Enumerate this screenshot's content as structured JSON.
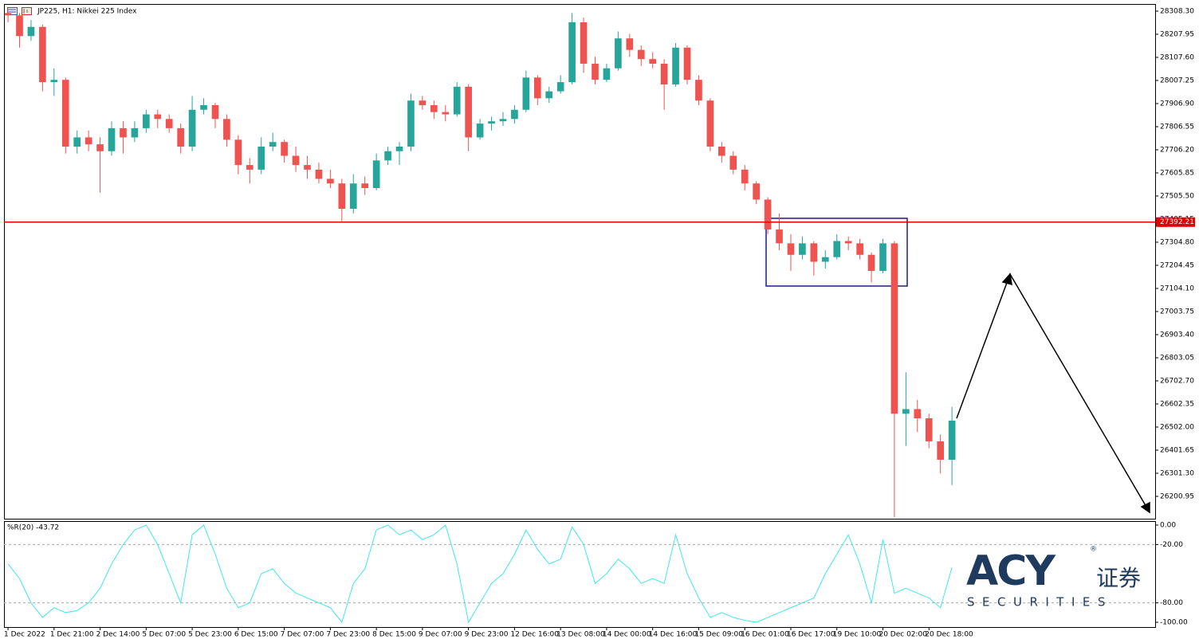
{
  "chart_data": [
    {
      "type": "candlestick",
      "title": "JP225, H1:  Nikkei 225 Index",
      "xlim": [
        -0.35,
        99.65
      ],
      "xticks": [
        {
          "value": 0,
          "label": "1 Dec 2022"
        },
        {
          "value": 4,
          "label": "1 Dec 21:00"
        },
        {
          "value": 8,
          "label": "2 Dec 14:00"
        },
        {
          "value": 12,
          "label": "5 Dec 07:00"
        },
        {
          "value": 16,
          "label": "5 Dec 23:00"
        },
        {
          "value": 20,
          "label": "6 Dec 15:00"
        },
        {
          "value": 24,
          "label": "7 Dec 07:00"
        },
        {
          "value": 28,
          "label": "7 Dec 23:00"
        },
        {
          "value": 32,
          "label": "8 Dec 15:00"
        },
        {
          "value": 36,
          "label": "9 Dec 07:00"
        },
        {
          "value": 40,
          "label": "9 Dec 23:00"
        },
        {
          "value": 44,
          "label": "12 Dec 16:00"
        },
        {
          "value": 48,
          "label": "13 Dec 08:00"
        },
        {
          "value": 52,
          "label": "14 Dec 00:00"
        },
        {
          "value": 56,
          "label": "14 Dec 16:00"
        },
        {
          "value": 60,
          "label": "15 Dec 09:00"
        },
        {
          "value": 64,
          "label": "16 Dec 01:00"
        },
        {
          "value": 68,
          "label": "16 Dec 17:00"
        },
        {
          "value": 72,
          "label": "19 Dec 10:00"
        },
        {
          "value": 76,
          "label": "20 Dec 02:00"
        },
        {
          "value": 80,
          "label": "20 Dec 18:00"
        }
      ],
      "ylim": [
        26104,
        28339.4
      ],
      "yticks": [
        {
          "value": 28308.3,
          "label": "28308.30"
        },
        {
          "value": 28207.95,
          "label": "28207.95"
        },
        {
          "value": 28107.6,
          "label": "28107.60"
        },
        {
          "value": 28007.25,
          "label": "28007.25"
        },
        {
          "value": 27906.9,
          "label": "27906.90"
        },
        {
          "value": 27806.55,
          "label": "27806.55"
        },
        {
          "value": 27706.2,
          "label": "27706.20"
        },
        {
          "value": 27605.85,
          "label": "27605.85"
        },
        {
          "value": 27505.5,
          "label": "27505.50"
        },
        {
          "value": 27405.15,
          "label": "27405.15"
        },
        {
          "value": 27304.8,
          "label": "27304.80"
        },
        {
          "value": 27204.45,
          "label": "27204.45"
        },
        {
          "value": 27104.1,
          "label": "27104.10"
        },
        {
          "value": 27003.75,
          "label": "27003.75"
        },
        {
          "value": 26903.4,
          "label": "26903.40"
        },
        {
          "value": 26803.05,
          "label": "26803.05"
        },
        {
          "value": 26702.7,
          "label": "26702.70"
        },
        {
          "value": 26602.35,
          "label": "26602.35"
        },
        {
          "value": 26502,
          "label": "26502.00"
        },
        {
          "value": 26401.65,
          "label": "26401.65"
        },
        {
          "value": 26301.3,
          "label": "26301.30"
        },
        {
          "value": 26200.95,
          "label": "26200.95"
        }
      ],
      "up_color": "#26a69a",
      "down_color": "#ef5350",
      "open": [
        28300,
        28290,
        28200,
        28240,
        28000,
        28010,
        27720,
        27760,
        27730,
        27700,
        27800,
        27760,
        27800,
        27860,
        27840,
        27800,
        27720,
        27880,
        27900,
        27840,
        27750,
        27640,
        27620,
        27720,
        27740,
        27680,
        27640,
        27620,
        27580,
        27560,
        27450,
        27560,
        27540,
        27660,
        27700,
        27720,
        27920,
        27900,
        27870,
        27860,
        27980,
        27760,
        27820,
        27830,
        27840,
        27880,
        28020,
        27930,
        27960,
        28000,
        28260,
        28080,
        28010,
        28060,
        28190,
        28140,
        28100,
        28080,
        27990,
        28150,
        28010,
        27920,
        27720,
        27680,
        27620,
        27560,
        27490,
        27360,
        27300,
        27250,
        27300,
        27220,
        27240,
        27310,
        27300,
        27250,
        27180,
        27300,
        26560,
        26580,
        26540,
        26440,
        26360
      ],
      "high": [
        28320,
        28300,
        28270,
        28250,
        28060,
        28020,
        27790,
        27790,
        27760,
        27830,
        27830,
        27830,
        27880,
        27880,
        27860,
        27820,
        27940,
        27930,
        27910,
        27860,
        27770,
        27670,
        27760,
        27780,
        27750,
        27720,
        27680,
        27650,
        27620,
        27580,
        27600,
        27590,
        27690,
        27720,
        27740,
        27950,
        27940,
        27920,
        27900,
        28000,
        27990,
        27840,
        27850,
        27870,
        27900,
        28050,
        28030,
        27980,
        28030,
        28300,
        28280,
        28110,
        28080,
        28220,
        28210,
        28160,
        28130,
        28100,
        28170,
        28160,
        28030,
        27930,
        27740,
        27700,
        27640,
        27570,
        27500,
        27430,
        27340,
        27330,
        27310,
        27270,
        27340,
        27330,
        27320,
        27260,
        27320,
        27310,
        26740,
        26620,
        26560,
        26470,
        26590
      ],
      "low": [
        28260,
        28150,
        28180,
        27960,
        27940,
        27690,
        27690,
        27700,
        27520,
        27680,
        27690,
        27740,
        27780,
        27800,
        27780,
        27690,
        27700,
        27860,
        27800,
        27720,
        27600,
        27560,
        27600,
        27700,
        27650,
        27610,
        27580,
        27560,
        27540,
        27390,
        27430,
        27510,
        27530,
        27640,
        27640,
        27700,
        27880,
        27840,
        27830,
        27850,
        27700,
        27750,
        27790,
        27810,
        27820,
        27870,
        27900,
        27910,
        27950,
        27990,
        28040,
        27990,
        28000,
        28050,
        28110,
        28070,
        28060,
        27880,
        27980,
        27990,
        27900,
        27700,
        27650,
        27600,
        27530,
        27470,
        27340,
        27270,
        27180,
        27230,
        27160,
        27190,
        27230,
        27270,
        27230,
        27130,
        27170,
        26110,
        26420,
        26480,
        26410,
        26300,
        26250
      ],
      "close": [
        28290,
        28200,
        28240,
        28000,
        28010,
        27720,
        27760,
        27730,
        27700,
        27800,
        27760,
        27800,
        27860,
        27840,
        27800,
        27720,
        27880,
        27900,
        27840,
        27750,
        27640,
        27620,
        27720,
        27740,
        27680,
        27640,
        27620,
        27580,
        27560,
        27450,
        27560,
        27540,
        27660,
        27700,
        27720,
        27920,
        27900,
        27870,
        27860,
        27980,
        27760,
        27820,
        27830,
        27840,
        27880,
        28020,
        27930,
        27960,
        28000,
        28260,
        28080,
        28010,
        28060,
        28190,
        28140,
        28100,
        28080,
        27990,
        28150,
        28010,
        27920,
        27720,
        27680,
        27620,
        27560,
        27490,
        27360,
        27300,
        27250,
        27300,
        27220,
        27240,
        27310,
        27300,
        27250,
        27180,
        27300,
        26560,
        26580,
        26540,
        26440,
        26360,
        26530
      ],
      "hline": {
        "value": 27392.21,
        "color": "#e00000"
      }
    },
    {
      "type": "line",
      "title": "%R(20) -43.72",
      "color": "#3ee8ee",
      "ylim": [
        -104.9,
        4.1
      ],
      "yticks": [
        {
          "value": 0,
          "label": "0.00"
        },
        {
          "value": -20,
          "label": "-20.00"
        },
        {
          "value": -80,
          "label": "-80.00"
        },
        {
          "value": -100,
          "label": "-100.00"
        }
      ],
      "levels": [
        -20,
        -80
      ],
      "values": [
        -40,
        -55,
        -80,
        -95,
        -85,
        -90,
        -88,
        -80,
        -65,
        -40,
        -20,
        -5,
        0,
        -20,
        -50,
        -80,
        -10,
        0,
        -30,
        -65,
        -85,
        -80,
        -50,
        -45,
        -60,
        -70,
        -75,
        -80,
        -85,
        -100,
        -60,
        -45,
        -5,
        0,
        -10,
        -5,
        -15,
        -10,
        0,
        -40,
        -100,
        -80,
        -60,
        -50,
        -30,
        -5,
        -25,
        -40,
        -35,
        -2,
        -20,
        -60,
        -50,
        -35,
        -45,
        -60,
        -55,
        -60,
        -10,
        -50,
        -75,
        -95,
        -90,
        -95,
        -98,
        -100,
        -95,
        -90,
        -85,
        -80,
        -75,
        -50,
        -30,
        -10,
        -40,
        -80,
        -15,
        -70,
        -65,
        -70,
        -75,
        -85,
        -43.72
      ]
    }
  ],
  "logo": {
    "brand": "ACY",
    "mark": "®",
    "suffix": "证券",
    "sub": "SECURITIES"
  }
}
